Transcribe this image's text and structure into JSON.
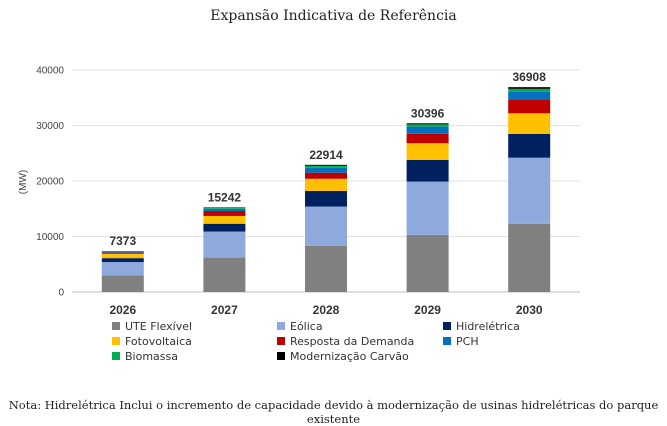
{
  "chart_data": {
    "type": "bar",
    "stacked": true,
    "title": "Expansão Indicativa de Referência",
    "ylabel": "(MW)",
    "xlabel": "",
    "ylim": [
      0,
      40000
    ],
    "yticks": [
      0,
      10000,
      20000,
      30000,
      40000
    ],
    "grid": true,
    "legend_position": "bottom",
    "categories": [
      "2026",
      "2027",
      "2028",
      "2029",
      "2030"
    ],
    "totals": [
      7373,
      15242,
      22914,
      30396,
      36908
    ],
    "series": [
      {
        "name": "UTE Flexível",
        "color": "#808080",
        "values": [
          3000,
          6200,
          8300,
          10300,
          12300
        ]
      },
      {
        "name": "Eólica",
        "color": "#8EA9DB",
        "values": [
          2400,
          4700,
          7100,
          9600,
          11900
        ]
      },
      {
        "name": "Hidrelétrica",
        "color": "#002060",
        "values": [
          700,
          1400,
          2800,
          3900,
          4300
        ]
      },
      {
        "name": "Fotovoltaica",
        "color": "#FFC000",
        "values": [
          800,
          1400,
          2200,
          3000,
          3700
        ]
      },
      {
        "name": "Resposta da Demanda",
        "color": "#C00000",
        "values": [
          200,
          900,
          1100,
          1700,
          2400
        ]
      },
      {
        "name": "PCH",
        "color": "#0070C0",
        "values": [
          150,
          400,
          900,
          1300,
          1500
        ]
      },
      {
        "name": "Biomassa",
        "color": "#00B050",
        "values": [
          70,
          150,
          350,
          400,
          508
        ]
      },
      {
        "name": "Modernização Carvão",
        "color": "#000000",
        "values": [
          53,
          92,
          164,
          196,
          300
        ]
      }
    ]
  },
  "note": "Nota: Hidrelétrica Inclui o incremento de capacidade devido à modernização de usinas hidrelétricas do parque existente"
}
